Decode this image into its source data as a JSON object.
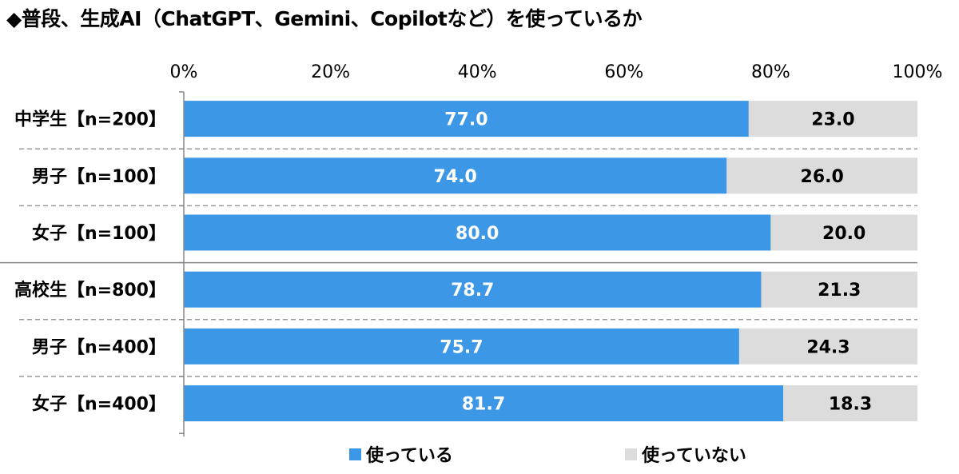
{
  "chart_data": {
    "type": "bar",
    "orientation": "horizontal",
    "stacked": true,
    "title": "◆普段、生成AI（ChatGPT、Gemini、Copilotなど）を使っているか",
    "categories": [
      "中学生【n=200】",
      "男子【n=100】",
      "女子【n=100】",
      "高校生【n=800】",
      "男子【n=400】",
      "女子【n=400】"
    ],
    "series": [
      {
        "name": "使っている",
        "color": "#3c98e6",
        "label_color": "#ffffff",
        "values": [
          77.0,
          74.0,
          80.0,
          78.7,
          75.7,
          81.7
        ]
      },
      {
        "name": "使っていない",
        "color": "#dcdcdc",
        "label_color": "#000000",
        "values": [
          23.0,
          26.0,
          20.0,
          21.3,
          24.3,
          18.3
        ]
      }
    ],
    "x_ticks": [
      "0%",
      "20%",
      "40%",
      "60%",
      "80%",
      "100%"
    ],
    "xlim": [
      0,
      100
    ],
    "axis_position": "top",
    "grid": false,
    "legend_position": "bottom"
  }
}
